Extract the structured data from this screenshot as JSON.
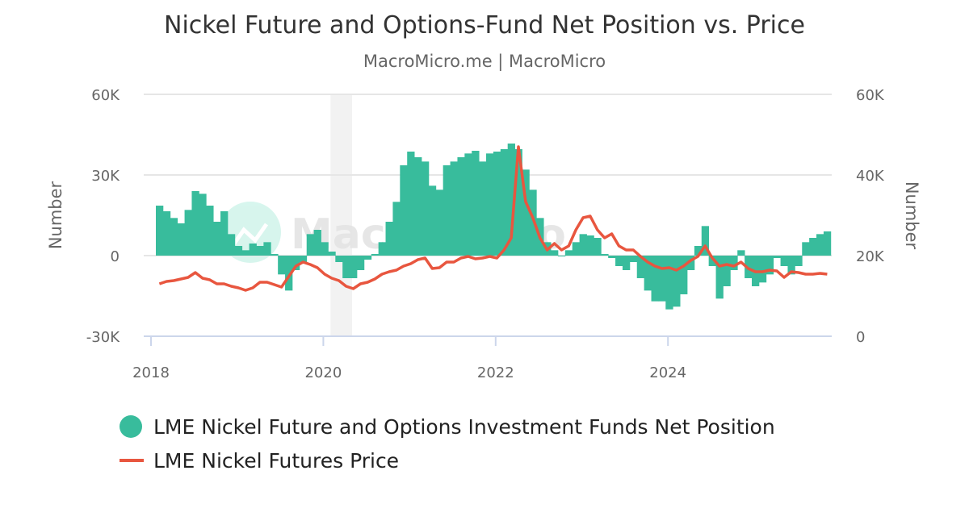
{
  "chart_data": {
    "type": "bar+line",
    "title": "Nickel Future and Options-Fund Net Position vs. Price",
    "subtitle": "MacroMicro.me | MacroMicro",
    "watermark": "MacroMicro",
    "left_axis": {
      "label": "Number",
      "ticks": [
        "60K",
        "30K",
        "0",
        "-30K"
      ],
      "range": [
        -30000,
        60000
      ]
    },
    "right_axis": {
      "label": "Number",
      "ticks": [
        "60K",
        "40K",
        "20K",
        "0"
      ],
      "range": [
        0,
        60000
      ]
    },
    "x_ticks": [
      "2018",
      "2020",
      "2022",
      "2024"
    ],
    "shaded_period": [
      "2020-02",
      "2020-04"
    ],
    "grid": true,
    "legend_placement": "bottom",
    "x": [
      "2018-01",
      "2018-02",
      "2018-03",
      "2018-04",
      "2018-05",
      "2018-06",
      "2018-07",
      "2018-08",
      "2018-09",
      "2018-10",
      "2018-11",
      "2018-12",
      "2019-01",
      "2019-02",
      "2019-03",
      "2019-04",
      "2019-05",
      "2019-06",
      "2019-07",
      "2019-08",
      "2019-09",
      "2019-10",
      "2019-11",
      "2019-12",
      "2020-01",
      "2020-02",
      "2020-03",
      "2020-04",
      "2020-05",
      "2020-06",
      "2020-07",
      "2020-08",
      "2020-09",
      "2020-10",
      "2020-11",
      "2020-12",
      "2021-01",
      "2021-02",
      "2021-03",
      "2021-04",
      "2021-05",
      "2021-06",
      "2021-07",
      "2021-08",
      "2021-09",
      "2021-10",
      "2021-11",
      "2021-12",
      "2022-01",
      "2022-02",
      "2022-03",
      "2022-04",
      "2022-05",
      "2022-06",
      "2022-07",
      "2022-08",
      "2022-09",
      "2022-10",
      "2022-11",
      "2022-12",
      "2023-01",
      "2023-02",
      "2023-03",
      "2023-04",
      "2023-05",
      "2023-06",
      "2023-07",
      "2023-08",
      "2023-09",
      "2023-10",
      "2023-11",
      "2023-12",
      "2024-01",
      "2024-02",
      "2024-03",
      "2024-04",
      "2024-05",
      "2024-06",
      "2024-07",
      "2024-08",
      "2024-09",
      "2024-10",
      "2024-11",
      "2024-12",
      "2025-01",
      "2025-02",
      "2025-03",
      "2025-04",
      "2025-05",
      "2025-06",
      "2025-07",
      "2025-08",
      "2025-09",
      "2025-10"
    ],
    "series": [
      {
        "name": "LME Nickel Future and Options Investment Funds Net Position",
        "type": "bar",
        "axis": "left",
        "color": "#38bc9c",
        "values": [
          18600,
          16500,
          14000,
          12000,
          17000,
          24000,
          23000,
          18600,
          12600,
          16500,
          8000,
          3600,
          2000,
          4500,
          3600,
          5000,
          600,
          -7000,
          -13000,
          -5400,
          -2400,
          8000,
          9600,
          5000,
          1500,
          -2400,
          -8400,
          -8400,
          -5400,
          -1500,
          600,
          5000,
          12600,
          20000,
          33600,
          38700,
          36600,
          35000,
          26000,
          24500,
          33600,
          35000,
          36600,
          38000,
          39000,
          35000,
          38000,
          38700,
          39600,
          41700,
          39600,
          32000,
          24500,
          14000,
          5000,
          2000,
          -300,
          2000,
          5000,
          8000,
          7500,
          6600,
          600,
          -900,
          -3900,
          -5400,
          -2400,
          -8400,
          -13000,
          -17000,
          -17000,
          -20000,
          -19000,
          -14400,
          -5400,
          3600,
          11000,
          -3900,
          -16000,
          -11400,
          -5400,
          2000,
          -8400,
          -11400,
          -10000,
          -7000,
          -900,
          -3900,
          -7000,
          -3900,
          5000,
          6600,
          8000,
          9000
        ]
      },
      {
        "name": "LME Nickel Futures Price",
        "type": "line",
        "axis": "right",
        "color": "#e8563f",
        "values": [
          13000,
          13600,
          13800,
          14200,
          14600,
          15800,
          14400,
          14000,
          13000,
          13000,
          12400,
          12000,
          11400,
          12000,
          13400,
          13400,
          12800,
          12200,
          14800,
          17400,
          18400,
          17800,
          17000,
          15400,
          14400,
          13800,
          12400,
          11800,
          13000,
          13400,
          14200,
          15400,
          16000,
          16400,
          17400,
          18000,
          19000,
          19400,
          16800,
          17000,
          18400,
          18400,
          19400,
          19800,
          19200,
          19400,
          19800,
          19400,
          21400,
          24400,
          47000,
          33400,
          29400,
          24400,
          21400,
          23000,
          21400,
          22400,
          26400,
          29400,
          29800,
          26400,
          24400,
          25400,
          22400,
          21400,
          21400,
          19800,
          18400,
          17400,
          16800,
          17000,
          16400,
          17400,
          18800,
          19800,
          22400,
          19400,
          17400,
          17800,
          17400,
          18400,
          16800,
          16000,
          16000,
          16400,
          16200,
          14600,
          16000,
          15800,
          15400,
          15400,
          15600,
          15400
        ]
      }
    ]
  }
}
